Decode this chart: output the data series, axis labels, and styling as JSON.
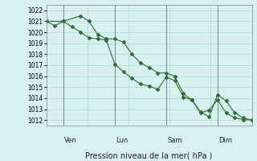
{
  "title": "",
  "xlabel": "Pression niveau de la mer( hPa )",
  "ylabel": "",
  "background_color": "#d8f0f0",
  "grid_color": "#aaddcc",
  "line_color": "#2d6e2d",
  "ylim": [
    1011.5,
    1022.5
  ],
  "yticks": [
    1012,
    1013,
    1014,
    1015,
    1016,
    1017,
    1018,
    1019,
    1020,
    1021,
    1022
  ],
  "day_labels": [
    "Ven",
    "Lun",
    "Sam",
    "Dim"
  ],
  "day_positions": [
    0.083,
    0.333,
    0.583,
    0.833
  ],
  "series1_x": [
    0.0,
    0.042,
    0.083,
    0.125,
    0.167,
    0.208,
    0.25,
    0.292,
    0.333,
    0.375,
    0.417,
    0.458,
    0.5,
    0.542,
    0.583,
    0.625,
    0.667,
    0.708,
    0.75,
    0.792,
    0.833,
    0.875,
    0.917,
    0.958,
    1.0
  ],
  "series1_y": [
    1021.0,
    1020.6,
    1021.0,
    1020.5,
    1020.0,
    1019.5,
    1019.4,
    1019.3,
    1017.1,
    1016.4,
    1015.8,
    1015.3,
    1015.1,
    1014.8,
    1015.9,
    1015.6,
    1014.1,
    1013.85,
    1012.65,
    1012.9,
    1013.85,
    1012.65,
    1012.2,
    1012.05,
    1012.0
  ],
  "series2_x": [
    0.0,
    0.083,
    0.167,
    0.208,
    0.25,
    0.292,
    0.333,
    0.375,
    0.417,
    0.458,
    0.5,
    0.542,
    0.583,
    0.625,
    0.667,
    0.708,
    0.75,
    0.792,
    0.833,
    0.875,
    0.917,
    0.958,
    1.0
  ],
  "series2_y": [
    1021.0,
    1021.0,
    1021.5,
    1021.0,
    1019.8,
    1019.4,
    1019.4,
    1019.1,
    1018.0,
    1017.2,
    1016.8,
    1016.3,
    1016.3,
    1016.0,
    1014.4,
    1013.85,
    1012.75,
    1012.3,
    1014.3,
    1013.75,
    1012.65,
    1012.2,
    1012.0
  ],
  "xlim": [
    0.0,
    1.0
  ]
}
